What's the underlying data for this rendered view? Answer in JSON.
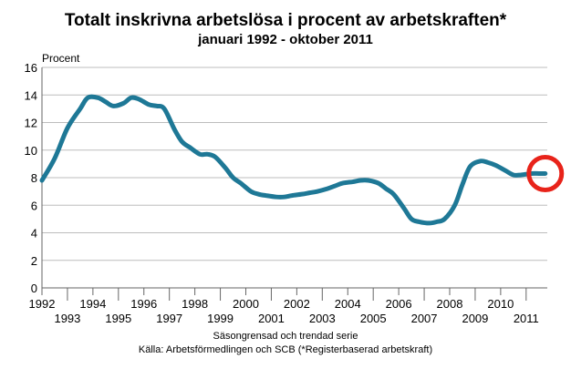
{
  "chart_data": {
    "type": "line",
    "title": "Totalt inskrivna arbetslösa i procent av arbetskraften*",
    "subtitle": "januari 1992 - oktober 2011",
    "ylabel": "Procent",
    "xlabel": "",
    "ylim": [
      0,
      16
    ],
    "yticks": [
      "0",
      "2",
      "4",
      "6",
      "8",
      "10",
      "12",
      "14",
      "16"
    ],
    "xlim": [
      1992,
      2011.83
    ],
    "xticks_upper": [
      "1992",
      "1994",
      "1996",
      "1998",
      "2000",
      "2002",
      "2004",
      "2006",
      "2008",
      "2010"
    ],
    "xticks_lower": [
      "1993",
      "1995",
      "1997",
      "1999",
      "2001",
      "2003",
      "2005",
      "2007",
      "2009",
      "2011"
    ],
    "grid": "horizontal",
    "line_color": "#1e7896",
    "highlight_color": "#e8231a",
    "highlight_point": [
      2011.75,
      8.3
    ],
    "series": [
      {
        "x": [
          1992.0,
          1992.5,
          1993.0,
          1993.5,
          1993.8,
          1994.2,
          1994.5,
          1994.8,
          1995.2,
          1995.5,
          1995.8,
          1996.2,
          1996.5,
          1996.8,
          1997.2,
          1997.5,
          1997.8,
          1998.2,
          1998.5,
          1998.8,
          1999.2,
          1999.5,
          1999.8,
          2000.2,
          2000.5,
          2000.8,
          2001.2,
          2001.5,
          2001.8,
          2002.2,
          2002.5,
          2002.8,
          2003.2,
          2003.5,
          2003.8,
          2004.2,
          2004.5,
          2004.8,
          2005.2,
          2005.5,
          2005.8,
          2006.2,
          2006.5,
          2006.8,
          2007.2,
          2007.5,
          2007.8,
          2008.2,
          2008.5,
          2008.8,
          2009.2,
          2009.5,
          2009.8,
          2010.2,
          2010.5,
          2010.8,
          2011.2,
          2011.5,
          2011.75
        ],
        "values": [
          7.8,
          9.4,
          11.6,
          13.0,
          13.8,
          13.8,
          13.5,
          13.2,
          13.4,
          13.8,
          13.7,
          13.3,
          13.2,
          13.0,
          11.5,
          10.6,
          10.2,
          9.7,
          9.7,
          9.5,
          8.7,
          8.0,
          7.6,
          7.0,
          6.8,
          6.7,
          6.6,
          6.6,
          6.7,
          6.8,
          6.9,
          7.0,
          7.2,
          7.4,
          7.6,
          7.7,
          7.8,
          7.8,
          7.6,
          7.2,
          6.8,
          5.8,
          5.0,
          4.8,
          4.7,
          4.8,
          5.0,
          6.0,
          7.5,
          8.8,
          9.2,
          9.1,
          8.9,
          8.5,
          8.2,
          8.2,
          8.3,
          8.3,
          8.3
        ]
      }
    ]
  },
  "footer": {
    "series_note": "Säsongrensad och trendad serie",
    "source": "Källa: Arbetsförmedlingen och SCB (*Registerbaserad arbetskraft)"
  }
}
